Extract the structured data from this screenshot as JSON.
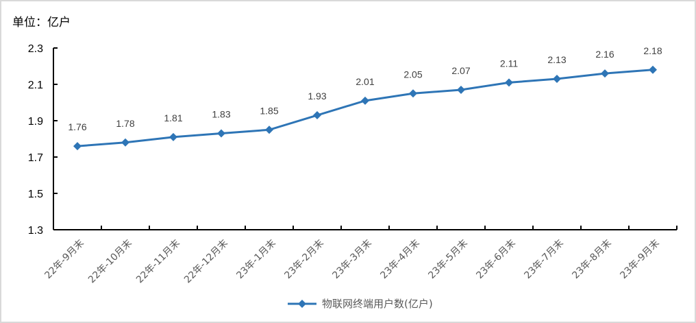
{
  "unit_label": "单位：亿户",
  "legend": {
    "label": "物联网终端用户数(亿户)",
    "color": "#2e75b6"
  },
  "chart_data": {
    "type": "line",
    "title": "",
    "xlabel": "",
    "ylabel": "单位：亿户",
    "ylim": [
      1.3,
      2.3
    ],
    "yticks": [
      1.3,
      1.5,
      1.7,
      1.9,
      2.1,
      2.3
    ],
    "grid": false,
    "legend_position": "bottom",
    "categories": [
      "22年-9月末",
      "22年-10月末",
      "22年-11月末",
      "22年-12月末",
      "23年-1月末",
      "23年-2月末",
      "23年-3月末",
      "23年-4月末",
      "23年-5月末",
      "23年-6月末",
      "23年-7月末",
      "23年-8月末",
      "23年-9月末"
    ],
    "series": [
      {
        "name": "物联网终端用户数(亿户)",
        "color": "#2e75b6",
        "marker": "diamond",
        "values": [
          1.76,
          1.78,
          1.81,
          1.83,
          1.85,
          1.93,
          2.01,
          2.05,
          2.07,
          2.11,
          2.13,
          2.16,
          2.18
        ]
      }
    ]
  }
}
